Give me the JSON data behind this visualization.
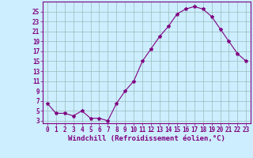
{
  "x": [
    0,
    1,
    2,
    3,
    4,
    5,
    6,
    7,
    8,
    9,
    10,
    11,
    12,
    13,
    14,
    15,
    16,
    17,
    18,
    19,
    20,
    21,
    22,
    23
  ],
  "y": [
    6.5,
    4.5,
    4.5,
    4.0,
    5.0,
    3.5,
    3.5,
    3.0,
    6.5,
    9.0,
    11.0,
    15.0,
    17.5,
    20.0,
    22.0,
    24.5,
    25.5,
    26.0,
    25.5,
    24.0,
    21.5,
    19.0,
    16.5,
    15.0
  ],
  "line_color": "#800080",
  "marker": "*",
  "marker_size": 3,
  "bg_color": "#cceeff",
  "grid_color": "#99bbbb",
  "axis_color": "#800080",
  "xlabel": "Windchill (Refroidissement éolien,°C)",
  "ylabel_ticks": [
    3,
    5,
    7,
    9,
    11,
    13,
    15,
    17,
    19,
    21,
    23,
    25
  ],
  "xlim": [
    -0.5,
    23.5
  ],
  "ylim": [
    2.5,
    27
  ],
  "xticks": [
    0,
    1,
    2,
    3,
    4,
    5,
    6,
    7,
    8,
    9,
    10,
    11,
    12,
    13,
    14,
    15,
    16,
    17,
    18,
    19,
    20,
    21,
    22,
    23
  ],
  "tick_fontsize": 5.5,
  "label_fontsize": 6.5
}
